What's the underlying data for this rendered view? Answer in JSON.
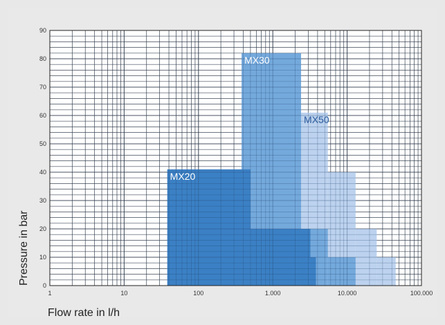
{
  "chart_data": {
    "type": "area",
    "xlabel": "Flow rate in l/h",
    "ylabel": "Pressure in bar",
    "xscale": "log",
    "xlim": [
      1,
      100000
    ],
    "ylim": [
      0,
      90
    ],
    "grid": true,
    "x_tick_labels": [
      "1",
      "10",
      "100",
      "1.000",
      "10.000",
      "100.000"
    ],
    "y_tick_labels": [
      "0",
      "10",
      "20",
      "30",
      "40",
      "50",
      "60",
      "70",
      "80",
      "90"
    ],
    "series": [
      {
        "name": "MX50",
        "color": "#bcd2ee",
        "label_color": "#2d5c9e",
        "steps": [
          {
            "x": [
              2400,
              5500
            ],
            "y": 61
          },
          {
            "x": [
              5500,
              13000
            ],
            "y": 40
          },
          {
            "x": [
              13000,
              25000
            ],
            "y": 20
          },
          {
            "x": [
              25000,
              45000
            ],
            "y": 10
          }
        ]
      },
      {
        "name": "MX30",
        "color": "#74a9dc",
        "label_color": "#ffffff",
        "steps": [
          {
            "x": [
              380,
              2400
            ],
            "y": 82
          },
          {
            "x": [
              2400,
              5500
            ],
            "y": 20
          },
          {
            "x": [
              5500,
              13000
            ],
            "y": 10
          }
        ]
      },
      {
        "name": "MX20",
        "color": "#3b80c4",
        "label_color": "#ffffff",
        "steps": [
          {
            "x": [
              38,
              500
            ],
            "y": 41
          },
          {
            "x": [
              500,
              3200
            ],
            "y": 20
          },
          {
            "x": [
              3200,
              3800
            ],
            "y": 10
          }
        ]
      }
    ]
  }
}
